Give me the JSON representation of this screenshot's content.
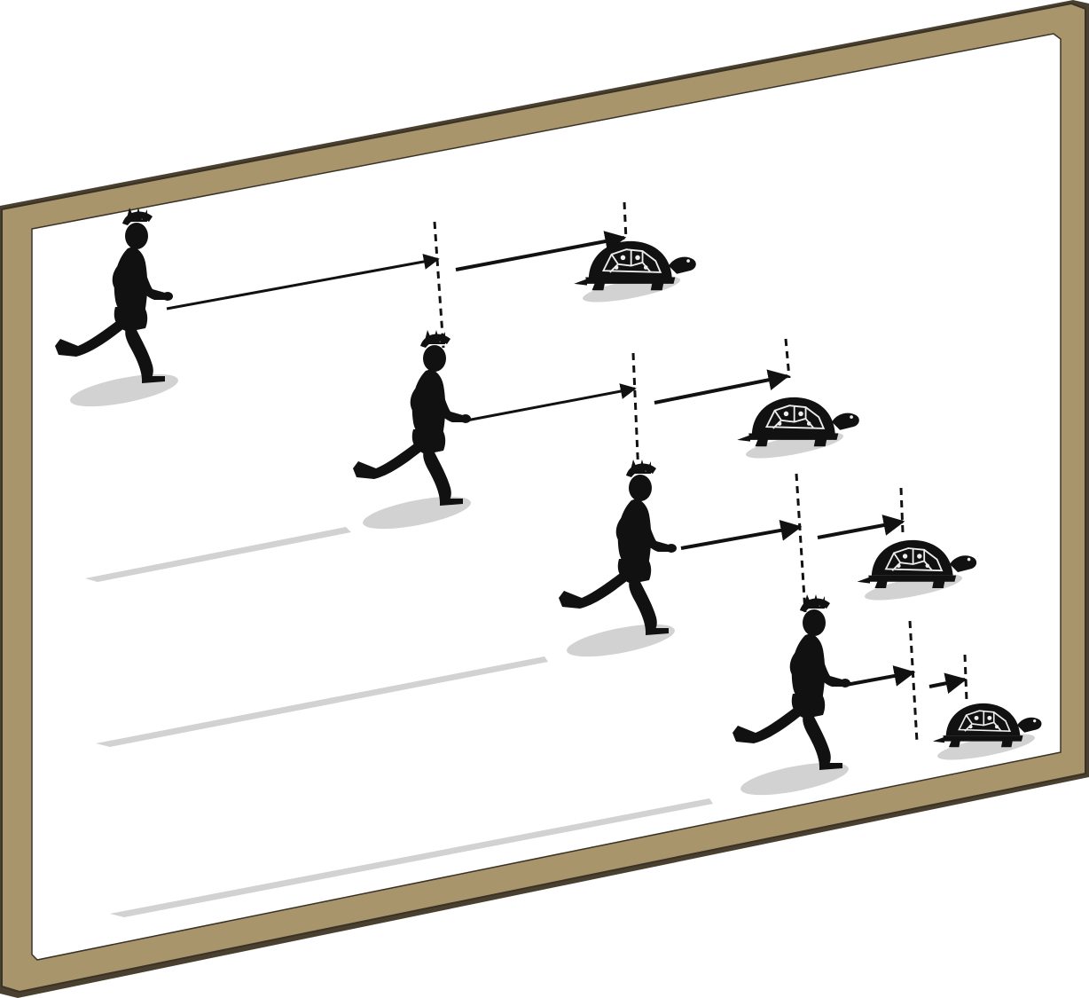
{
  "diagram": {
    "frame_color": "#a8956c",
    "frame_shadow_color": "#4a4030",
    "board_color": "#ffffff",
    "figure_color": "#111111",
    "shadow_color": "#cfcfcf",
    "shell_color": "#f2f2f2",
    "rows": [
      {
        "runner": "runner-silhouette",
        "arrows": [
          {
            "length": "long"
          },
          {
            "length": "long"
          }
        ],
        "tortoise": "tortoise"
      },
      {
        "runner": "runner-silhouette",
        "arrows": [
          {
            "length": "medium"
          },
          {
            "length": "medium"
          }
        ],
        "tortoise": "tortoise"
      },
      {
        "runner": "runner-silhouette",
        "arrows": [
          {
            "length": "short"
          },
          {
            "length": "short"
          }
        ],
        "tortoise": "tortoise"
      },
      {
        "runner": "runner-silhouette",
        "arrows": [
          {
            "length": "shorter"
          },
          {
            "length": "shortest"
          }
        ],
        "tortoise": "tortoise"
      }
    ]
  }
}
